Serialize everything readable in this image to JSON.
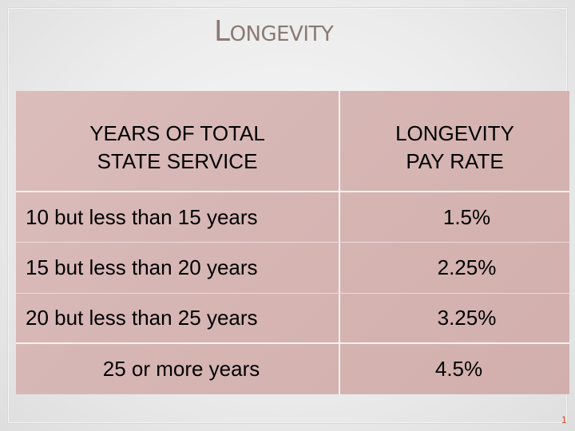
{
  "slide": {
    "title_initial": "L",
    "title_rest": "ONGEVITY",
    "page_number": "1"
  },
  "table": {
    "headers": {
      "col1_line1": "YEARS OF TOTAL",
      "col1_line2": "STATE SERVICE",
      "col2_line1": "LONGEVITY",
      "col2_line2": "PAY RATE"
    },
    "rows": [
      {
        "years": "10 but less than 15 years",
        "rate": "1.5%"
      },
      {
        "years": "15 but less than 20 years",
        "rate": "2.25%"
      },
      {
        "years": "20 but less than 25 years",
        "rate": "3.25%"
      },
      {
        "years": "25 or more years",
        "rate": "4.5%"
      }
    ]
  },
  "colors": {
    "title": "#8a7a73",
    "table_fill": "#d6b6b4",
    "page_number": "#d04a2a"
  }
}
